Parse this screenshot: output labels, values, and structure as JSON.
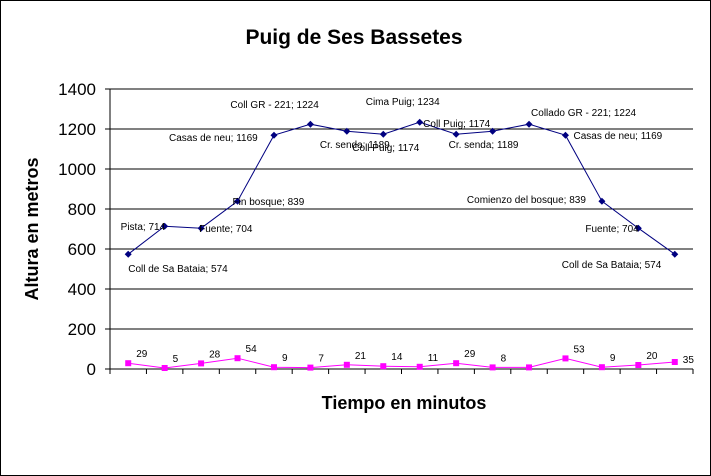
{
  "chart_data": {
    "type": "line",
    "title": "Puig de Ses Bassetes",
    "xlabel": "Tiempo en minutos",
    "ylabel": "Altura en metros",
    "ylim": [
      0,
      1400
    ],
    "yticks": [
      0,
      200,
      400,
      600,
      800,
      1000,
      1200,
      1400
    ],
    "grid": true,
    "legend": "none",
    "x": [
      1,
      2,
      3,
      4,
      5,
      6,
      7,
      8,
      9,
      10,
      11,
      12,
      13,
      14,
      15,
      16
    ],
    "series": [
      {
        "color": "#000080",
        "marker": "diamond",
        "values": [
          574,
          714,
          704,
          839,
          1169,
          1224,
          1189,
          1174,
          1234,
          1174,
          1189,
          1224,
          1169,
          839,
          704,
          574
        ],
        "point_labels": [
          "Coll de Sa Bataia; 574",
          "Pista; 714",
          "Fuente; 704",
          "Fin bosque; 839",
          "Casas de neu; 1169",
          "Coll GR - 221; 1224",
          "Cr. senda; 1189",
          "Coll Puig; 1174",
          "Cima Puig; 1234",
          "Coll Puig; 1174",
          "Cr. senda; 1189",
          "Collado GR - 221; 1224",
          "Casas de neu; 1169",
          "Comienzo del bosque; 839",
          "Fuente; 704",
          "Coll de Sa Bataia; 574"
        ]
      },
      {
        "color": "#ff00ff",
        "marker": "square",
        "values": [
          29,
          5,
          28,
          54,
          9,
          7,
          21,
          14,
          11,
          29,
          8,
          8,
          53,
          9,
          20,
          35
        ],
        "point_labels": [
          "29",
          "5",
          "28",
          "54",
          "9",
          "7",
          "21",
          "14",
          "11",
          "29",
          "8",
          "",
          "53",
          "9",
          "20",
          "35"
        ]
      }
    ]
  }
}
